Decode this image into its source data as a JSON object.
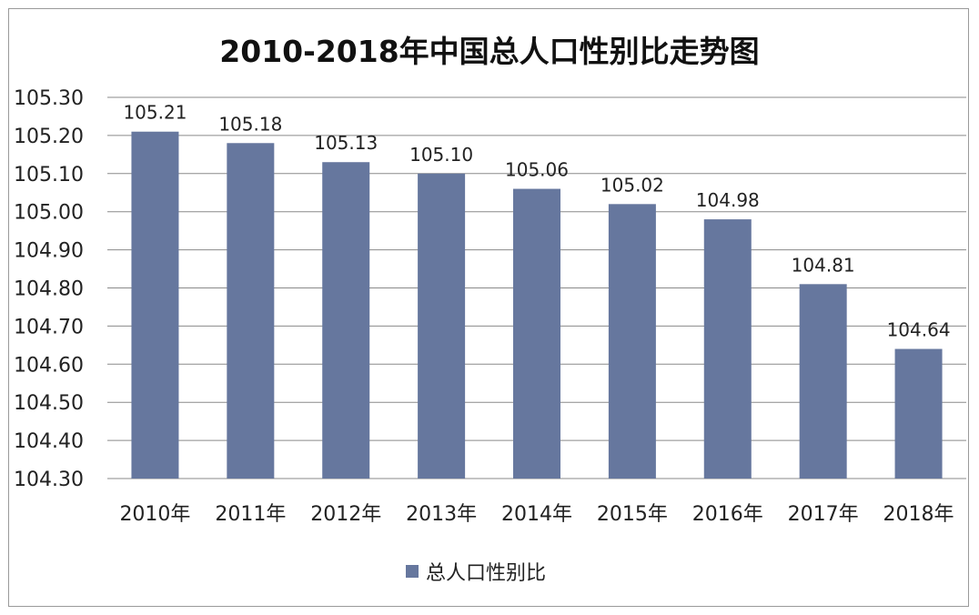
{
  "chart_data": {
    "type": "bar",
    "title": "2010-2018年中国总人口性别比走势图",
    "categories": [
      "2010年",
      "2011年",
      "2012年",
      "2013年",
      "2014年",
      "2015年",
      "2016年",
      "2017年",
      "2018年"
    ],
    "series": [
      {
        "name": "总人口性别比",
        "values": [
          105.21,
          105.18,
          105.13,
          105.1,
          105.06,
          105.02,
          104.98,
          104.81,
          104.64
        ],
        "color": "#66779e"
      }
    ],
    "data_labels": [
      "105.21",
      "105.18",
      "105.13",
      "105.10",
      "105.06",
      "105.02",
      "104.98",
      "104.81",
      "104.64"
    ],
    "ylim": [
      104.3,
      105.3
    ],
    "yticks": [
      "104.30",
      "104.40",
      "104.50",
      "104.60",
      "104.70",
      "104.80",
      "104.90",
      "105.00",
      "105.10",
      "105.20",
      "105.30"
    ],
    "grid": true,
    "legend": "bottom",
    "xlabel": "",
    "ylabel": ""
  }
}
